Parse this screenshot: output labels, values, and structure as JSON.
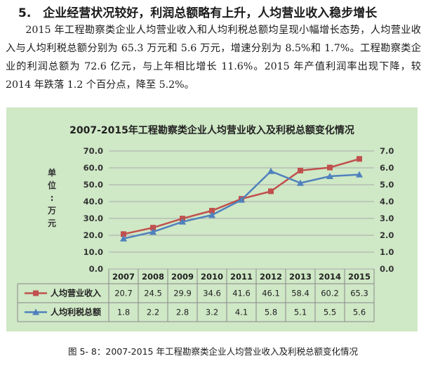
{
  "section": {
    "heading": "5.　企业经营状况较好，利润总额略有上升，人均营业收入稳步增长",
    "paragraph": "2015 年工程勘察类企业人均营业收入和人均利税总额均呈现小幅增长态势，人均营业收入与人均利税总额分别为 65.3 万元和 5.6 万元，增速分别为 8.5%和 1.7%。工程勘察类企业的利润总额为 72.6 亿元，与上年相比增长 11.6%。2015 年产值利润率出现下降，较 2014 年跌落 1.2 个百分点，降至 5.2%。"
  },
  "caption": "图 5- 8：2007-2015 年工程勘察类企业人均营业收入及利税总额变化情况",
  "colors": {
    "panel_bg": "#cfe8c6",
    "revenue": "#c0504d",
    "tax": "#4f81bd"
  },
  "chart_data": {
    "type": "line",
    "title": "2007-2015年工程勘察类企业人均营业收入及利税总额变化情况",
    "ylabel": [
      "单",
      "位",
      ":",
      "万",
      "元"
    ],
    "categories": [
      "2007",
      "2008",
      "2009",
      "2010",
      "2011",
      "2012",
      "2013",
      "2014",
      "2015"
    ],
    "ylim_left": [
      0,
      70
    ],
    "yticks_left": [
      "0.0",
      "10.0",
      "20.0",
      "30.0",
      "40.0",
      "50.0",
      "60.0",
      "70.0"
    ],
    "ylim_right": [
      0,
      7
    ],
    "yticks_right": [
      "0.0",
      "1.0",
      "2.0",
      "3.0",
      "4.0",
      "5.0",
      "6.0",
      "7.0"
    ],
    "grid": true,
    "series": [
      {
        "name": "人均营业收入",
        "axis": "left",
        "marker": "square",
        "values": [
          20.7,
          24.5,
          29.9,
          34.6,
          41.6,
          46.1,
          58.4,
          60.2,
          65.3
        ],
        "labels": [
          "20.7",
          "24.5",
          "29.9",
          "34.6",
          "41.6",
          "46.1",
          "58.4",
          "60.2",
          "65.3"
        ]
      },
      {
        "name": "人均利税总额",
        "axis": "right",
        "marker": "triangle",
        "values": [
          1.8,
          2.2,
          2.8,
          3.2,
          4.1,
          5.8,
          5.1,
          5.5,
          5.6
        ],
        "labels": [
          "1.8",
          "2.2",
          "2.8",
          "3.2",
          "4.1",
          "5.8",
          "5.1",
          "5.5",
          "5.6"
        ]
      }
    ]
  }
}
